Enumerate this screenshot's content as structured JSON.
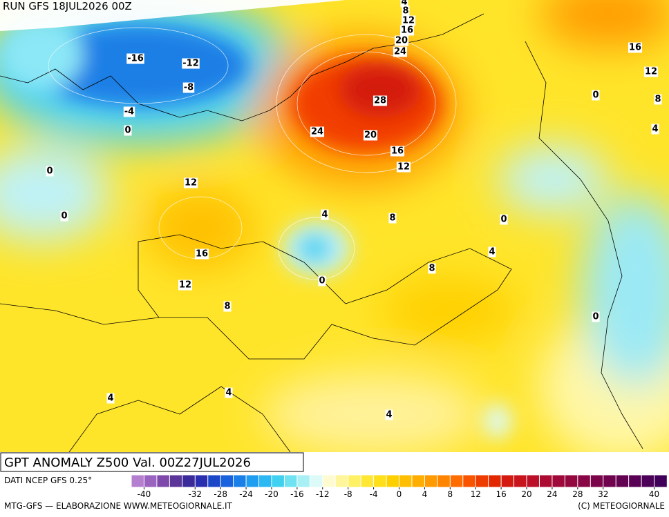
{
  "header": {
    "run": "RUN GFS 18JUL2026 00Z"
  },
  "map": {
    "contour_labels": [
      4,
      8,
      12,
      16,
      20,
      24,
      -16,
      -12,
      -8,
      28,
      -4,
      0,
      24,
      20,
      16,
      12,
      0,
      12,
      0,
      4,
      8,
      0,
      16,
      4,
      8,
      0,
      12,
      8,
      0,
      4,
      4,
      4,
      16,
      12,
      8,
      4,
      0
    ]
  },
  "footer": {
    "title": "GPT ANOMALY Z500 Val. 00Z27JUL2026",
    "source": "DATI NCEP GFS 0.25°",
    "credit": "MTG-GFS — ELABORAZIONE WWW.METEOGIORNALE.IT",
    "copyright": "(C) METEOGIORNALE"
  },
  "colorbar": {
    "lim": [
      -42,
      42
    ],
    "ticks": [
      -40,
      -32,
      -28,
      -24,
      -20,
      -16,
      -12,
      -8,
      -4,
      0,
      4,
      8,
      12,
      16,
      20,
      24,
      28,
      32,
      40
    ],
    "colors": [
      "#b57fd0",
      "#9a63bf",
      "#7e49ab",
      "#5c3599",
      "#3b2a9a",
      "#2a2fb0",
      "#1d47c9",
      "#1a62dd",
      "#1a7fe8",
      "#1f9df0",
      "#2cb8f2",
      "#40d0f0",
      "#6fe3f2",
      "#a8f0f4",
      "#dcfaf8",
      "#fffbd0",
      "#fff59a",
      "#fff066",
      "#ffe733",
      "#ffde1a",
      "#ffd000",
      "#ffbf00",
      "#ffae00",
      "#ff9a00",
      "#ff8400",
      "#ff6c00",
      "#f85400",
      "#ee3c00",
      "#e12800",
      "#d41a10",
      "#c8141c",
      "#bb1028",
      "#ad0c32",
      "#a00a3a",
      "#940840",
      "#880645",
      "#7c044a",
      "#70034e",
      "#640252",
      "#580155",
      "#4c0058",
      "#40005a"
    ]
  }
}
